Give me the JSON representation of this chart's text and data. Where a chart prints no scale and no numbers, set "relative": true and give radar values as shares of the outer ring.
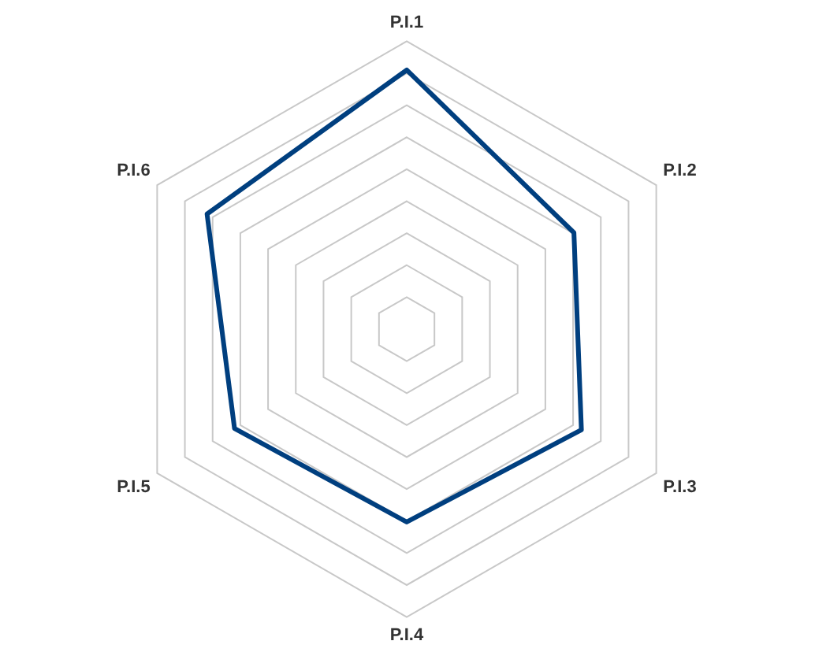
{
  "chart_data": {
    "type": "radar",
    "relative": true,
    "categories": [
      "P.I.1",
      "P.I.2",
      "P.I.3",
      "P.I.4",
      "P.I.5",
      "P.I.6"
    ],
    "series": [
      {
        "color": "#003f7f",
        "values": [
          0.9,
          0.67,
          0.7,
          0.67,
          0.69,
          0.8
        ]
      }
    ],
    "grid": true,
    "legend": false,
    "marker": "none"
  }
}
